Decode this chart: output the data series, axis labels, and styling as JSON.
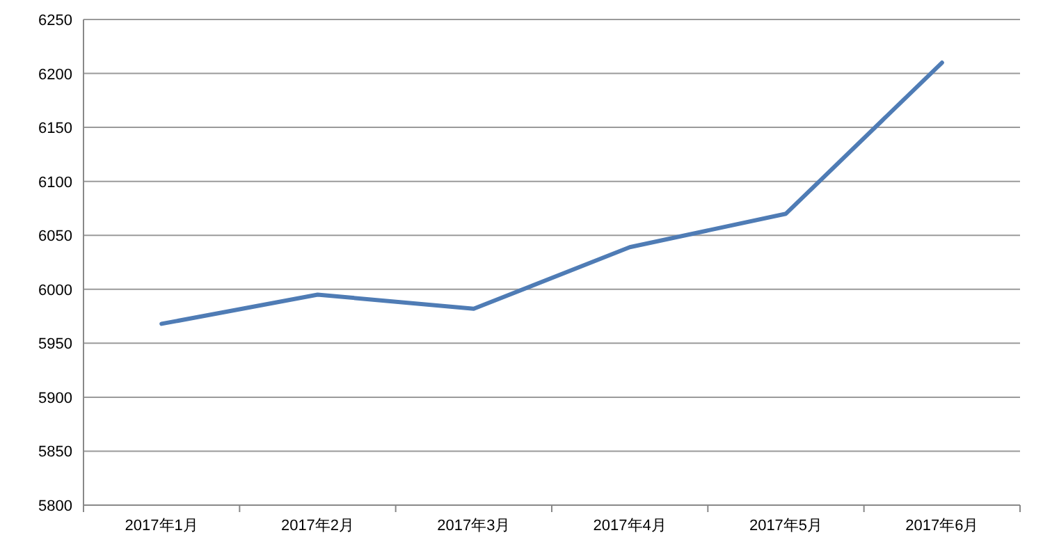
{
  "chart_data": {
    "type": "line",
    "categories": [
      "2017年1月",
      "2017年2月",
      "2017年3月",
      "2017年4月",
      "2017年5月",
      "2017年6月"
    ],
    "values": [
      5968,
      5995,
      5982,
      6039,
      6070,
      6210
    ],
    "color": "#4f7cb5",
    "ylim": [
      5800,
      6250
    ],
    "yticks": [
      5800,
      5850,
      5900,
      5950,
      6000,
      6050,
      6100,
      6150,
      6200,
      6250
    ],
    "grid": "y"
  }
}
